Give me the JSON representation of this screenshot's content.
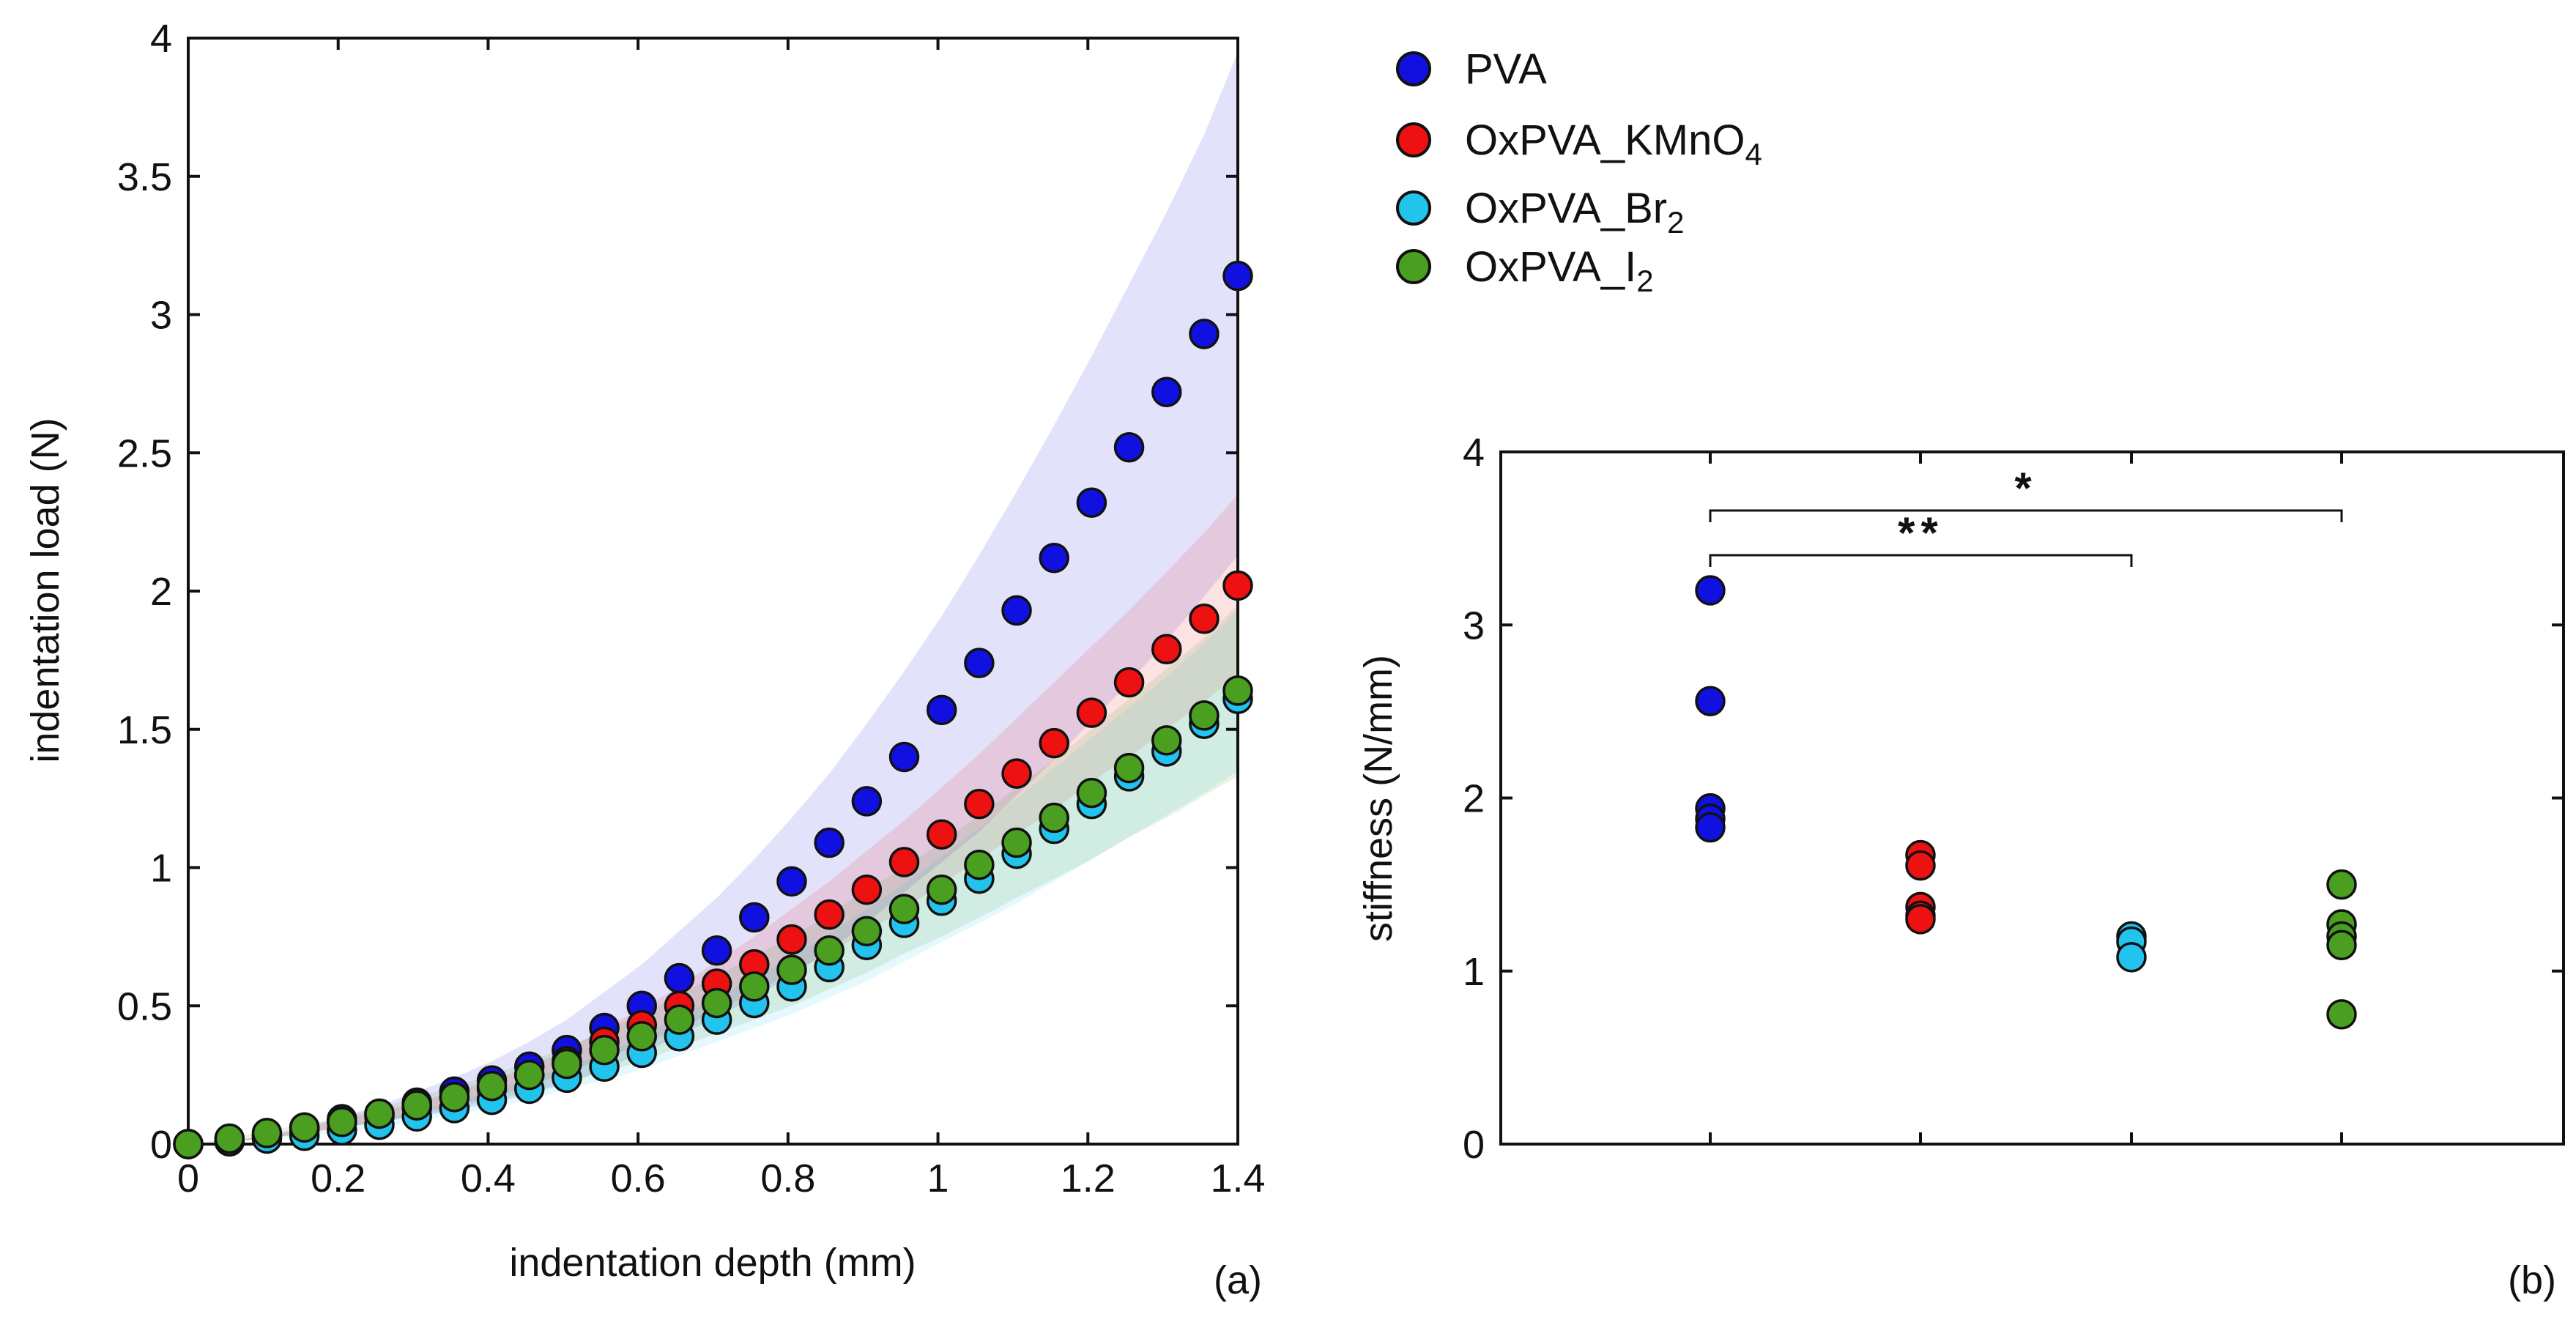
{
  "colors": {
    "PVA": "#1010e0",
    "OxPVA_KMnO4": "#ee1111",
    "OxPVA_Br2": "#22c4ee",
    "OxPVA_I2": "#4a9e20",
    "axis": "#111111"
  },
  "legend": {
    "items": [
      {
        "key": "PVA",
        "base": "PVA",
        "sub": ""
      },
      {
        "key": "OxPVA_KMnO4",
        "base": "OxPVA_KMnO",
        "sub": "4"
      },
      {
        "key": "OxPVA_Br2",
        "base": "OxPVA_Br",
        "sub": "2"
      },
      {
        "key": "OxPVA_I2",
        "base": "OxPVA_I",
        "sub": "2"
      }
    ]
  },
  "chart_data": [
    {
      "panel": "a",
      "panel_label": "(a)",
      "type": "scatter",
      "xlabel": "indentation depth (mm)",
      "ylabel": "indentation load (N)",
      "xlim": [
        0,
        1.4
      ],
      "ylim": [
        0,
        4
      ],
      "xticks": [
        0,
        0.2,
        0.4,
        0.6,
        0.8,
        1,
        1.2,
        1.4
      ],
      "xtick_labels": [
        "0",
        "0.2",
        "0.4",
        "0.6",
        "0.8",
        "1",
        "1.2",
        "1.4"
      ],
      "yticks": [
        0,
        0.5,
        1,
        1.5,
        2,
        2.5,
        3,
        3.5,
        4
      ],
      "ytick_labels": [
        "0",
        "0.5",
        "1",
        "1.5",
        "2",
        "2.5",
        "3",
        "3.5",
        "4"
      ],
      "x": [
        0,
        0.055,
        0.105,
        0.155,
        0.205,
        0.255,
        0.305,
        0.355,
        0.405,
        0.455,
        0.505,
        0.555,
        0.605,
        0.655,
        0.705,
        0.755,
        0.805,
        0.855,
        0.905,
        0.955,
        1.005,
        1.055,
        1.105,
        1.155,
        1.205,
        1.255,
        1.305,
        1.355,
        1.4
      ],
      "series": [
        {
          "key": "PVA",
          "name": "PVA",
          "values": [
            0,
            0.01,
            0.03,
            0.06,
            0.09,
            0.11,
            0.15,
            0.19,
            0.23,
            0.28,
            0.34,
            0.42,
            0.5,
            0.6,
            0.7,
            0.82,
            0.95,
            1.09,
            1.24,
            1.4,
            1.57,
            1.74,
            1.93,
            2.12,
            2.32,
            2.52,
            2.72,
            2.93,
            3.14
          ],
          "band_lower": [
            0,
            0.01,
            0.02,
            0.04,
            0.06,
            0.08,
            0.1,
            0.12,
            0.15,
            0.18,
            0.22,
            0.27,
            0.33,
            0.39,
            0.46,
            0.53,
            0.61,
            0.7,
            0.8,
            0.91,
            1.02,
            1.13,
            1.26,
            1.39,
            1.53,
            1.67,
            1.82,
            1.98,
            2.13
          ],
          "band_upper": [
            0,
            0.01,
            0.03,
            0.06,
            0.1,
            0.14,
            0.19,
            0.24,
            0.3,
            0.37,
            0.45,
            0.55,
            0.65,
            0.77,
            0.89,
            1.03,
            1.18,
            1.34,
            1.52,
            1.71,
            1.91,
            2.13,
            2.36,
            2.6,
            2.85,
            3.11,
            3.37,
            3.65,
            3.95
          ]
        },
        {
          "key": "OxPVA_KMnO4",
          "name": "OxPVA_KMnO4",
          "values": [
            0,
            0.01,
            0.03,
            0.05,
            0.08,
            0.1,
            0.13,
            0.17,
            0.2,
            0.25,
            0.3,
            0.37,
            0.43,
            0.5,
            0.58,
            0.65,
            0.74,
            0.83,
            0.92,
            1.02,
            1.12,
            1.23,
            1.34,
            1.45,
            1.56,
            1.67,
            1.79,
            1.9,
            2.02
          ],
          "band_lower": [
            0,
            0.01,
            0.02,
            0.04,
            0.06,
            0.08,
            0.11,
            0.14,
            0.17,
            0.21,
            0.26,
            0.31,
            0.36,
            0.42,
            0.48,
            0.55,
            0.62,
            0.69,
            0.77,
            0.85,
            0.94,
            1.03,
            1.12,
            1.21,
            1.31,
            1.4,
            1.5,
            1.6,
            1.7
          ],
          "band_upper": [
            0,
            0.01,
            0.03,
            0.06,
            0.09,
            0.12,
            0.15,
            0.19,
            0.23,
            0.28,
            0.34,
            0.42,
            0.49,
            0.57,
            0.66,
            0.75,
            0.85,
            0.95,
            1.06,
            1.17,
            1.29,
            1.41,
            1.54,
            1.67,
            1.8,
            1.93,
            2.07,
            2.21,
            2.35
          ]
        },
        {
          "key": "OxPVA_Br2",
          "name": "OxPVA_Br2",
          "values": [
            0,
            0.01,
            0.02,
            0.03,
            0.05,
            0.07,
            0.1,
            0.13,
            0.16,
            0.2,
            0.24,
            0.28,
            0.33,
            0.39,
            0.45,
            0.51,
            0.57,
            0.64,
            0.72,
            0.8,
            0.88,
            0.96,
            1.05,
            1.14,
            1.23,
            1.33,
            1.42,
            1.52,
            1.61
          ],
          "band_lower": [
            0,
            0.01,
            0.02,
            0.03,
            0.04,
            0.06,
            0.08,
            0.11,
            0.13,
            0.16,
            0.2,
            0.23,
            0.27,
            0.32,
            0.37,
            0.42,
            0.47,
            0.53,
            0.59,
            0.66,
            0.73,
            0.8,
            0.87,
            0.95,
            1.03,
            1.11,
            1.19,
            1.27,
            1.35
          ],
          "band_upper": [
            0,
            0.01,
            0.03,
            0.04,
            0.06,
            0.09,
            0.12,
            0.15,
            0.19,
            0.24,
            0.28,
            0.33,
            0.39,
            0.46,
            0.53,
            0.6,
            0.68,
            0.76,
            0.85,
            0.94,
            1.04,
            1.14,
            1.25,
            1.36,
            1.47,
            1.58,
            1.69,
            1.81,
            1.93
          ]
        },
        {
          "key": "OxPVA_I2",
          "name": "OxPVA_I2",
          "values": [
            0,
            0.02,
            0.04,
            0.06,
            0.08,
            0.11,
            0.14,
            0.17,
            0.21,
            0.25,
            0.29,
            0.34,
            0.39,
            0.45,
            0.51,
            0.57,
            0.63,
            0.7,
            0.77,
            0.85,
            0.92,
            1.01,
            1.09,
            1.18,
            1.27,
            1.36,
            1.46,
            1.55,
            1.64
          ],
          "band_lower": [
            0,
            0.01,
            0.02,
            0.04,
            0.06,
            0.08,
            0.1,
            0.13,
            0.16,
            0.19,
            0.22,
            0.26,
            0.3,
            0.35,
            0.4,
            0.45,
            0.5,
            0.56,
            0.62,
            0.69,
            0.75,
            0.82,
            0.89,
            0.96,
            1.03,
            1.11,
            1.18,
            1.26,
            1.33
          ],
          "band_upper": [
            0,
            0.02,
            0.05,
            0.07,
            0.1,
            0.13,
            0.17,
            0.21,
            0.25,
            0.3,
            0.35,
            0.41,
            0.47,
            0.54,
            0.61,
            0.68,
            0.75,
            0.83,
            0.92,
            1.0,
            1.09,
            1.19,
            1.29,
            1.39,
            1.5,
            1.61,
            1.72,
            1.83,
            1.95
          ]
        }
      ]
    },
    {
      "panel": "b",
      "panel_label": "(b)",
      "type": "scatter",
      "xlabel": "",
      "ylabel": "stiffness (N/mm)",
      "ylim": [
        0,
        4
      ],
      "yticks": [
        0,
        1,
        2,
        3,
        4
      ],
      "ytick_labels": [
        "0",
        "1",
        "2",
        "3",
        "4"
      ],
      "groups": [
        {
          "key": "PVA",
          "position": 1,
          "values": [
            3.2,
            2.56,
            1.94,
            1.88,
            1.83
          ]
        },
        {
          "key": "OxPVA_KMnO4",
          "position": 2,
          "values": [
            1.67,
            1.61,
            1.37,
            1.32,
            1.3
          ]
        },
        {
          "key": "OxPVA_Br2",
          "position": 3,
          "values": [
            1.2,
            1.17,
            1.08
          ]
        },
        {
          "key": "OxPVA_I2",
          "position": 4,
          "values": [
            1.5,
            1.27,
            1.2,
            1.15,
            0.75
          ]
        }
      ],
      "significance": [
        {
          "from": 1,
          "to": 4,
          "label": "*"
        },
        {
          "from": 1,
          "to": 3,
          "label": "**"
        }
      ]
    }
  ]
}
